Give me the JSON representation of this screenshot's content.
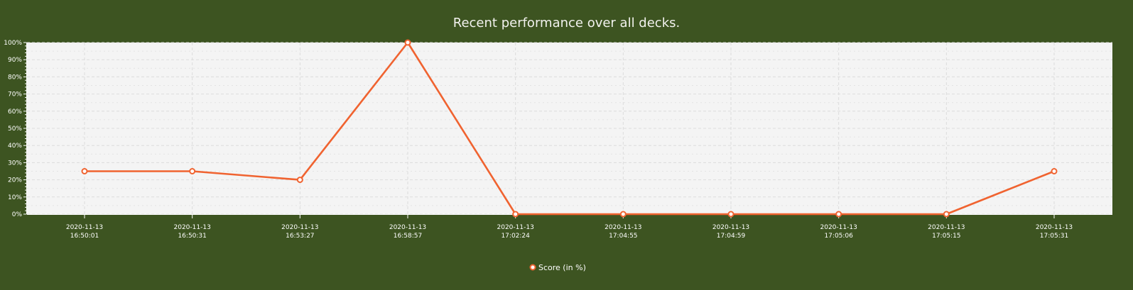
{
  "chart_data": {
    "type": "line",
    "title": "Recent performance over all decks.",
    "xlabel": "",
    "ylabel": "",
    "ylim": [
      0,
      100
    ],
    "y_tick_step": 10,
    "y_tick_suffix": "%",
    "grid": true,
    "legend_position": "bottom",
    "categories": [
      [
        "2020-11-13",
        "16:50:01"
      ],
      [
        "2020-11-13",
        "16:50:31"
      ],
      [
        "2020-11-13",
        "16:53:27"
      ],
      [
        "2020-11-13",
        "16:58:57"
      ],
      [
        "2020-11-13",
        "17:02:24"
      ],
      [
        "2020-11-13",
        "17:04:55"
      ],
      [
        "2020-11-13",
        "17:04:59"
      ],
      [
        "2020-11-13",
        "17:05:06"
      ],
      [
        "2020-11-13",
        "17:05:15"
      ],
      [
        "2020-11-13",
        "17:05:31"
      ]
    ],
    "series": [
      {
        "name": "Score (in %)",
        "color": "#f06330",
        "values": [
          25,
          25,
          20,
          100,
          0,
          0,
          0,
          0,
          0,
          25
        ]
      }
    ]
  },
  "colors": {
    "background": "#3d5421",
    "plot_background": "#f4f4f4",
    "grid": "#dcdcdc",
    "text": "#ffffff"
  }
}
